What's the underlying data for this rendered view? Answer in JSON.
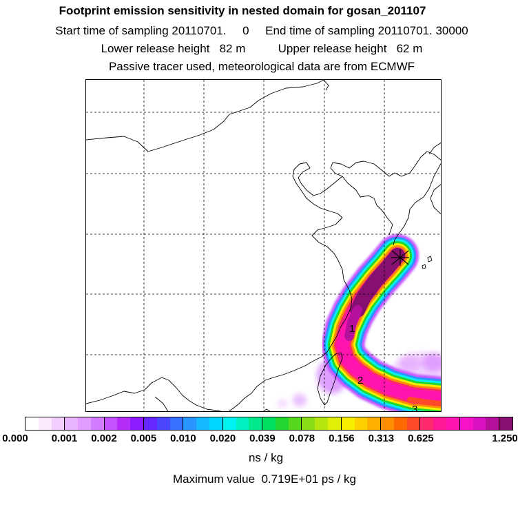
{
  "header": {
    "title": "Footprint emission sensitivity in nested domain for gosan_201107",
    "sampling": "Start time of sampling 20110701.     0     End time of sampling 20110701. 30000",
    "release": "Lower release height   82 m          Upper release height   62 m",
    "tracer": "Passive tracer used, meteorological data are from ECMWF"
  },
  "map": {
    "receptor_marker": "receptor-star-icon",
    "time_labels": [
      "1",
      "2",
      "3"
    ]
  },
  "colorbar": {
    "colors": [
      "#ffffff",
      "#fbe8ff",
      "#f3cfff",
      "#e9b4ff",
      "#e09cff",
      "#d37cff",
      "#c354ff",
      "#b32cf8",
      "#8c1cff",
      "#6626ff",
      "#4d46ff",
      "#3870ff",
      "#2a94ff",
      "#16b8ff",
      "#00d8ff",
      "#00f2f2",
      "#00f2c0",
      "#00ea8c",
      "#00de60",
      "#22d630",
      "#56d81e",
      "#8ade16",
      "#b6e60e",
      "#e0ee08",
      "#f8ee00",
      "#ffd000",
      "#ffb000",
      "#ff8e00",
      "#ff6a00",
      "#ff4a2a",
      "#ff2a6e",
      "#ff1894",
      "#ff14b0",
      "#f614c6",
      "#d812c0",
      "#b4109c",
      "#861070"
    ],
    "tick_labels": [
      "0.000",
      "0.001",
      "0.002",
      "0.005",
      "0.010",
      "0.020",
      "0.039",
      "0.078",
      "0.156",
      "0.313",
      "0.625",
      "1.250"
    ],
    "unit": "ns / kg"
  },
  "max_value": "Maximum value  0.719E+01 ps / kg"
}
